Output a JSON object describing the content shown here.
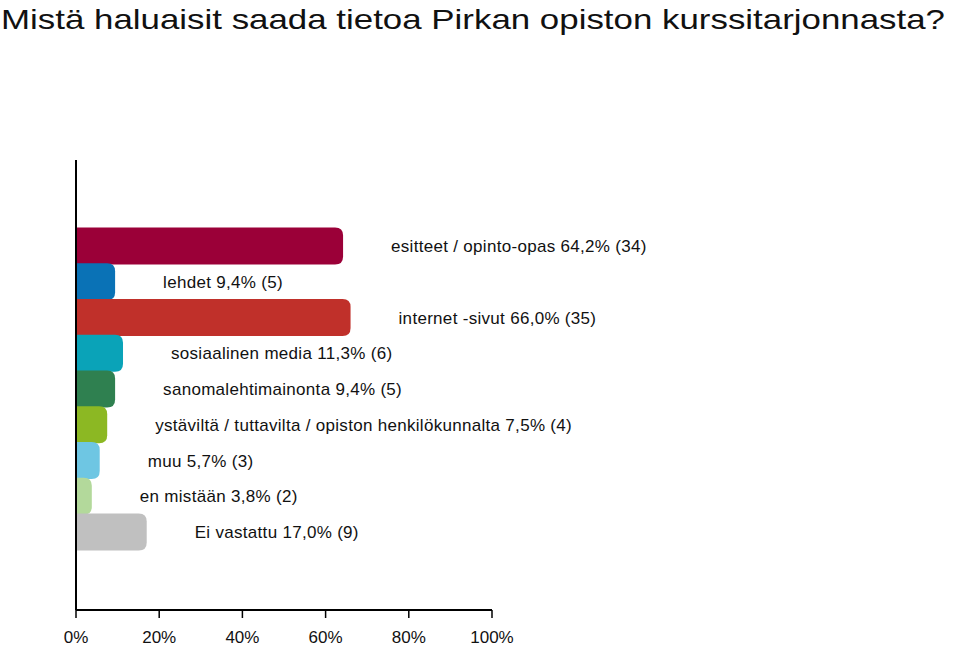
{
  "chart_data": {
    "type": "bar",
    "orientation": "horizontal",
    "title": "Mistä haluaisit saada tietoa Pirkan opiston kurssitarjonnasta?",
    "categories": [
      "esitteet / opinto-opas",
      "lehdet",
      "internet -sivut",
      "sosiaalinen media",
      "sanomalehtimainonta",
      "ystäviltä / tuttavilta / opiston henkilökunnalta",
      "muu",
      "en mistään",
      "Ei vastattu"
    ],
    "values": [
      64.2,
      9.4,
      66.0,
      11.3,
      9.4,
      7.5,
      5.7,
      3.8,
      17.0
    ],
    "value_labels": [
      "64,2% (34)",
      "9,4% (5)",
      "66,0% (35)",
      "11,3% (6)",
      "9,4% (5)",
      "7,5% (4)",
      "5,7% (3)",
      "3,8% (2)",
      "17,0% (9)"
    ],
    "colors": [
      "#9b0038",
      "#0a72b6",
      "#c0302a",
      "#0aa3b8",
      "#2f8050",
      "#8cb823",
      "#6ec6e3",
      "#b3d99b",
      "#c0c0c0"
    ],
    "data_labels": true,
    "grid": false,
    "xlim": [
      0,
      100
    ],
    "xticks": [
      {
        "value": 0,
        "label": "0%"
      },
      {
        "value": 20,
        "label": "20%"
      },
      {
        "value": 40,
        "label": "40%"
      },
      {
        "value": 60,
        "label": "60%"
      },
      {
        "value": 80,
        "label": "80%"
      },
      {
        "value": 100,
        "label": "100%"
      }
    ]
  }
}
